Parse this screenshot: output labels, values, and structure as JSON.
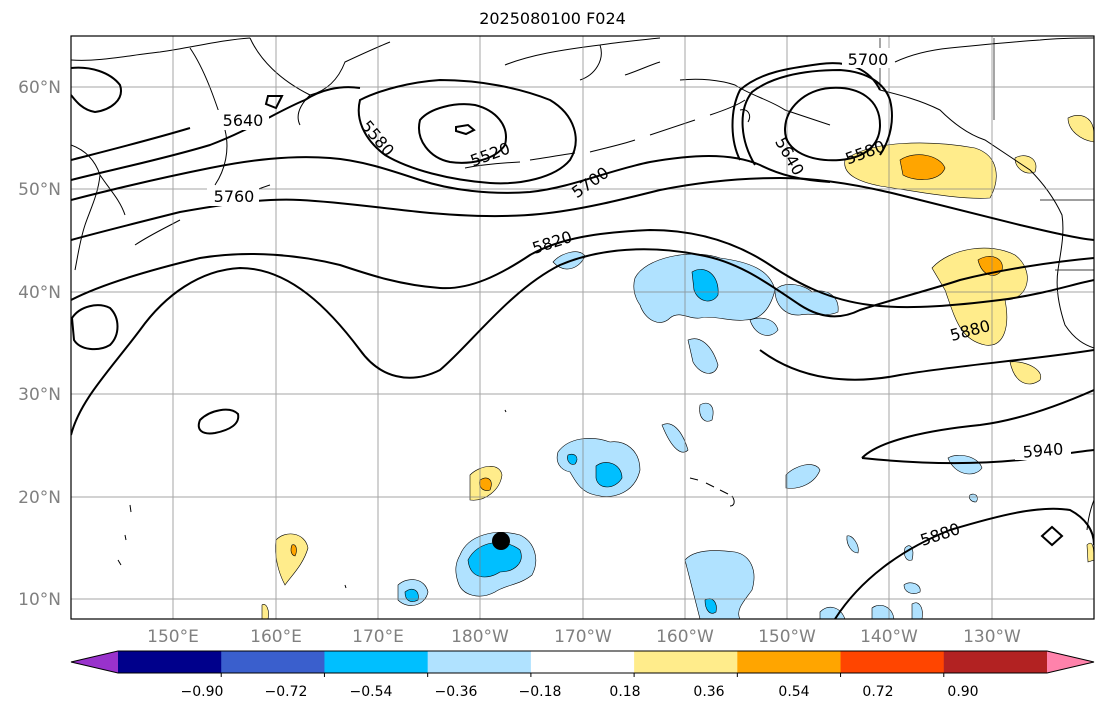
{
  "title": "2025080100 F024",
  "map": {
    "lat_labels": [
      "60°N",
      "50°N",
      "40°N",
      "30°N",
      "20°N",
      "10°N"
    ],
    "lon_labels": [
      "150°E",
      "160°E",
      "170°E",
      "180°W",
      "170°W",
      "160°W",
      "150°W",
      "140°W",
      "130°W"
    ],
    "contour_labels": [
      "5700",
      "5640",
      "5580",
      "5520",
      "5760",
      "5700",
      "5640",
      "5580",
      "5820",
      "5880",
      "5940",
      "5880"
    ],
    "marker": "black-dot"
  },
  "colorbar": {
    "ticks": [
      "−0.90",
      "−0.72",
      "−0.54",
      "−0.36",
      "−0.18",
      "0.18",
      "0.36",
      "0.54",
      "0.72",
      "0.90"
    ],
    "colors": [
      "#9932cc",
      "#00008b",
      "#3a5fcd",
      "#00bfff",
      "#b0e2ff",
      "#ffffff",
      "#ffec8b",
      "#ffa500",
      "#ff4500",
      "#b22222",
      "#ff82ab"
    ]
  }
}
